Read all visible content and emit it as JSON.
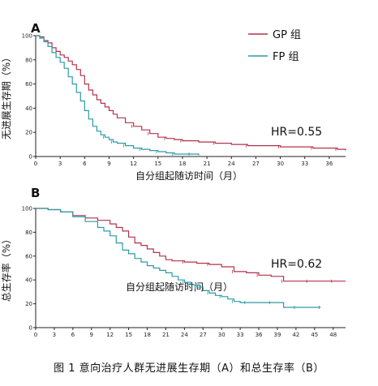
{
  "caption": "图 1 意向治疗人群无进展生存期（A）和总生存率（B）",
  "colors": {
    "gp": "#b2334c",
    "fp": "#2e9aa6",
    "axis": "#222222"
  },
  "chart_data": [
    {
      "type": "line",
      "panel_label": "A",
      "ylabel": "无进展生存期（%）",
      "xlabel": "自分组起随访时间（月）",
      "xlim": [
        0,
        38
      ],
      "ylim": [
        0,
        100
      ],
      "x_ticks": [
        "0",
        "3",
        "6",
        "9",
        "12",
        "15",
        "18",
        "21",
        "24",
        "27",
        "30",
        "33",
        "36"
      ],
      "y_ticks": [
        "0",
        "20",
        "40",
        "60",
        "80",
        "100"
      ],
      "annotation": "HR=0.55",
      "legend_position": "top-right",
      "series": [
        {
          "name": "GP 组",
          "key": "gp",
          "x": [
            0,
            0.5,
            1,
            1.5,
            2,
            2.5,
            3,
            3.5,
            4,
            4.5,
            5,
            5.5,
            6,
            6.5,
            7,
            7.5,
            8,
            8.5,
            9,
            9.5,
            10,
            11,
            12,
            13,
            14,
            15,
            16,
            17,
            18,
            20,
            22,
            24,
            26,
            28,
            30,
            32,
            34,
            36,
            37,
            38
          ],
          "y": [
            100,
            99,
            96,
            94,
            90,
            87,
            84,
            82,
            79,
            76,
            72,
            67,
            60,
            55,
            51,
            47,
            44,
            41,
            38,
            35,
            32,
            28,
            25,
            22,
            19,
            16,
            15,
            14,
            13,
            12,
            11,
            10,
            9,
            9,
            8,
            8,
            7,
            7,
            6,
            5
          ]
        },
        {
          "name": "FP 组",
          "key": "fp",
          "x": [
            0,
            0.5,
            1,
            1.5,
            2,
            2.5,
            3,
            3.5,
            4,
            4.5,
            5,
            5.5,
            6,
            6.5,
            7,
            7.5,
            8,
            8.5,
            9,
            9.5,
            10,
            11,
            12,
            13,
            14,
            15,
            16,
            17,
            18,
            19,
            20
          ],
          "y": [
            100,
            98,
            95,
            91,
            86,
            82,
            78,
            73,
            66,
            60,
            53,
            46,
            38,
            31,
            25,
            21,
            18,
            16,
            14,
            12,
            11,
            9,
            7,
            6,
            5,
            4,
            3,
            2,
            2,
            2,
            1
          ]
        }
      ]
    },
    {
      "type": "line",
      "panel_label": "B",
      "ylabel": "总生存率（%）",
      "xlabel": "自分组起随访时间（月）",
      "xlim": [
        0,
        50
      ],
      "ylim": [
        0,
        100
      ],
      "x_ticks": [
        "0",
        "3",
        "6",
        "9",
        "12",
        "15",
        "18",
        "21",
        "24",
        "27",
        "30",
        "33",
        "36",
        "39",
        "42",
        "45",
        "48"
      ],
      "y_ticks": [
        "0",
        "20",
        "40",
        "60",
        "80",
        "100"
      ],
      "annotation": "HR=0.62",
      "series": [
        {
          "name": "GP 组",
          "key": "gp",
          "x": [
            0,
            2,
            4,
            6,
            8,
            10,
            12,
            13,
            14,
            15,
            16,
            17,
            18,
            19,
            20,
            21,
            22,
            24,
            26,
            28,
            30,
            32,
            34,
            36,
            38,
            40,
            42,
            44,
            46,
            48,
            50
          ],
          "y": [
            100,
            99,
            97,
            94,
            92,
            90,
            87,
            84,
            81,
            76,
            71,
            69,
            66,
            63,
            60,
            57,
            56,
            55,
            54,
            53,
            51,
            47,
            46,
            44,
            43,
            39,
            39,
            39,
            39,
            39,
            39
          ]
        },
        {
          "name": "FP 组",
          "key": "fp",
          "x": [
            0,
            2,
            4,
            6,
            8,
            10,
            11,
            12,
            13,
            14,
            15,
            16,
            17,
            18,
            19,
            20,
            21,
            22,
            23,
            24,
            25,
            26,
            27,
            28,
            29,
            30,
            31,
            32,
            33,
            34,
            36,
            38,
            40,
            42,
            44,
            46
          ],
          "y": [
            100,
            99,
            97,
            93,
            89,
            84,
            81,
            77,
            71,
            65,
            62,
            58,
            55,
            52,
            50,
            48,
            46,
            43,
            40,
            38,
            36,
            34,
            31,
            29,
            27,
            26,
            24,
            22,
            21,
            21,
            21,
            21,
            17,
            17,
            17,
            17
          ]
        }
      ]
    }
  ]
}
